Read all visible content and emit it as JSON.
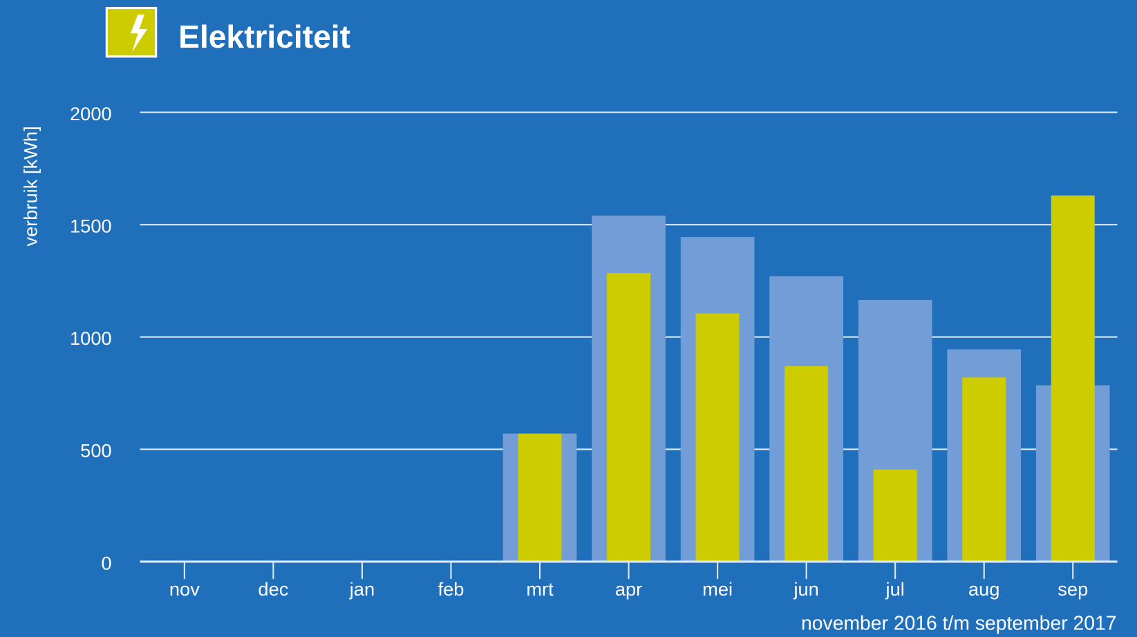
{
  "chart_data": {
    "type": "bar",
    "title": "Elektriciteit",
    "ylabel": "verbruik [kWh]",
    "subtitle": "november 2016 t/m september 2017",
    "categories": [
      "nov",
      "dec",
      "jan",
      "feb",
      "mrt",
      "apr",
      "mei",
      "jun",
      "jul",
      "aug",
      "sep"
    ],
    "series": [
      {
        "color": "#739dd6",
        "values": [
          null,
          null,
          null,
          null,
          570,
          1540,
          1445,
          1270,
          1165,
          945,
          785
        ]
      },
      {
        "color": "#cccc00",
        "values": [
          null,
          null,
          null,
          null,
          570,
          1285,
          1105,
          870,
          410,
          820,
          1630
        ]
      }
    ],
    "ylim": [
      0,
      2000
    ],
    "yticks": [
      0,
      500,
      1000,
      1500,
      2000
    ],
    "grid": true
  }
}
